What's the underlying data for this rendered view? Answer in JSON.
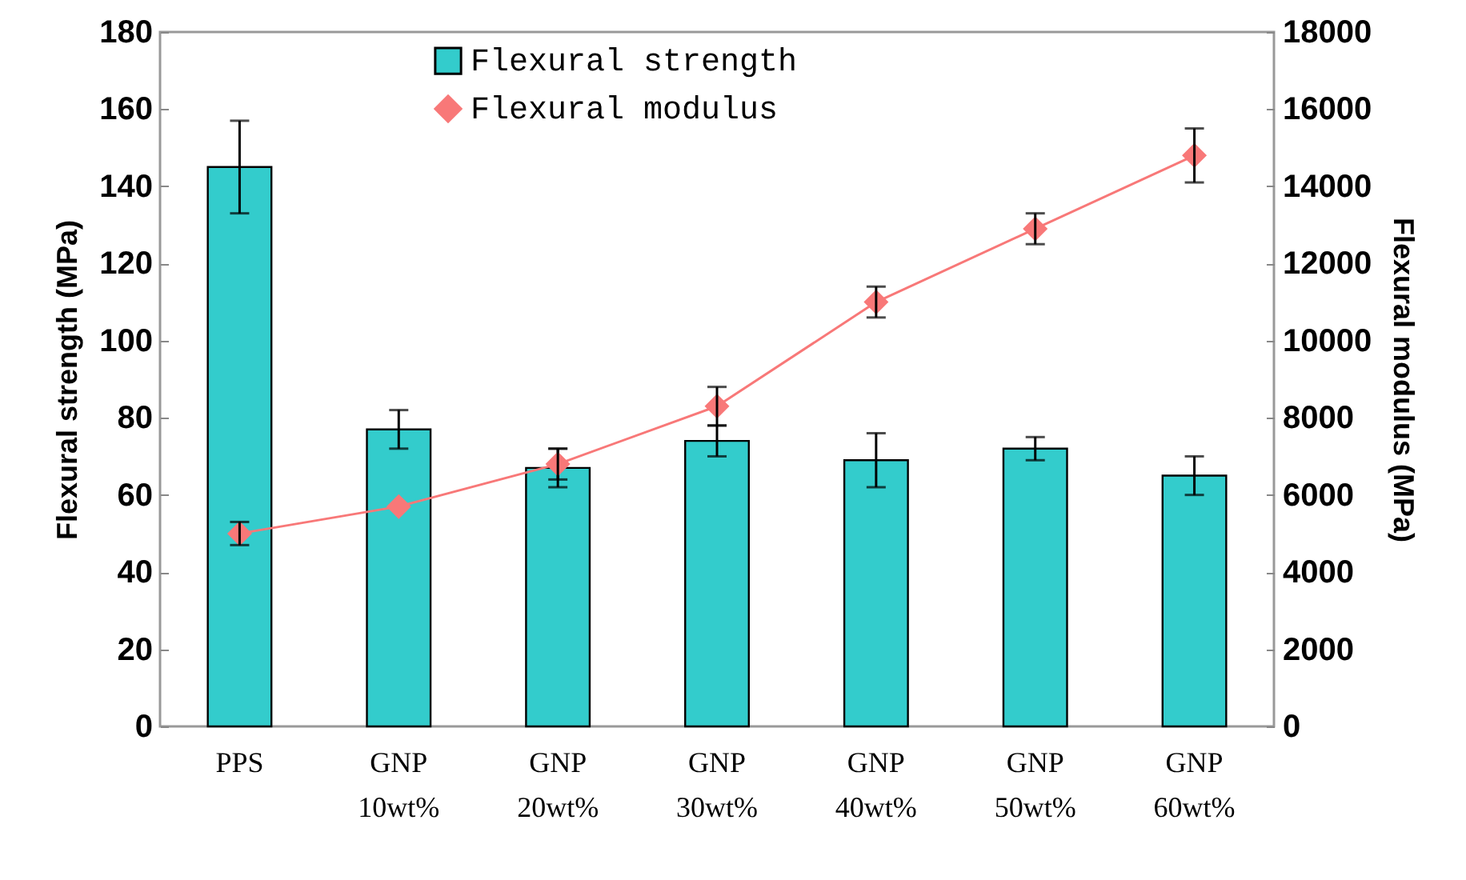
{
  "chart_data": {
    "type": "bar",
    "categories": [
      "PPS",
      "GNP 10wt%",
      "GNP 20wt%",
      "GNP 30wt%",
      "GNP 40wt%",
      "GNP 50wt%",
      "GNP 60wt%"
    ],
    "ylabel": "Flexural strength (MPa)",
    "y2label": "Flexural modulus (MPa)",
    "ylim": [
      0,
      180
    ],
    "yticks": [
      0,
      20,
      40,
      60,
      80,
      100,
      120,
      140,
      160,
      180
    ],
    "y2lim": [
      0,
      18000
    ],
    "y2ticks": [
      0,
      2000,
      4000,
      6000,
      8000,
      10000,
      12000,
      14000,
      16000,
      18000
    ],
    "series": [
      {
        "name": "Flexural strength",
        "color": "#33cccc",
        "values": [
          145,
          77,
          67,
          74,
          69,
          72,
          65
        ],
        "errors": [
          12,
          5,
          5,
          4,
          7,
          3,
          5
        ]
      },
      {
        "name": "Flexural modulus",
        "type": "line",
        "axis": "y2",
        "color": "#f87878",
        "values": [
          5000,
          5700,
          6800,
          8300,
          11000,
          12900,
          14800
        ],
        "errors": [
          300,
          null,
          400,
          500,
          400,
          400,
          700
        ]
      }
    ],
    "legend": "top",
    "marker": "diamond",
    "grid": false
  }
}
